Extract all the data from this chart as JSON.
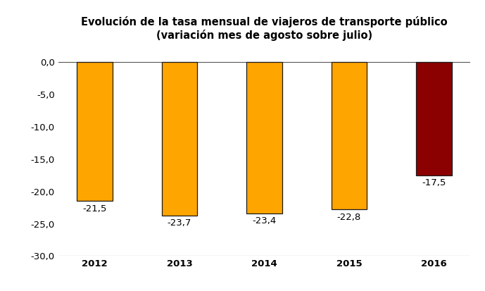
{
  "categories": [
    "2012",
    "2013",
    "2014",
    "2015",
    "2016"
  ],
  "values": [
    -21.5,
    -23.7,
    -23.4,
    -22.8,
    -17.5
  ],
  "bar_colors": [
    "#FFA500",
    "#FFA500",
    "#FFA500",
    "#FFA500",
    "#8B0000"
  ],
  "bar_edgecolors": [
    "#1a1a1a",
    "#1a1a1a",
    "#1a1a1a",
    "#1a1a1a",
    "#1a1a1a"
  ],
  "title_line1": "Evolución de la tasa mensual de viajeros de transporte público",
  "title_line2": "(variación mes de agosto sobre julio)",
  "ylim": [
    -30,
    1.5
  ],
  "yticks": [
    0.0,
    -5.0,
    -10.0,
    -15.0,
    -20.0,
    -25.0,
    -30.0
  ],
  "ytick_labels": [
    "0,0",
    "-5,0",
    "-10,0",
    "-15,0",
    "-20,0",
    "-25,0",
    "-30,0"
  ],
  "label_values": [
    "-21,5",
    "-23,7",
    "-23,4",
    "-22,8",
    "-17,5"
  ],
  "background_color": "#FFFFFF",
  "title_fontsize": 10.5,
  "tick_fontsize": 9.5,
  "label_fontsize": 9.5,
  "bar_width": 0.42
}
